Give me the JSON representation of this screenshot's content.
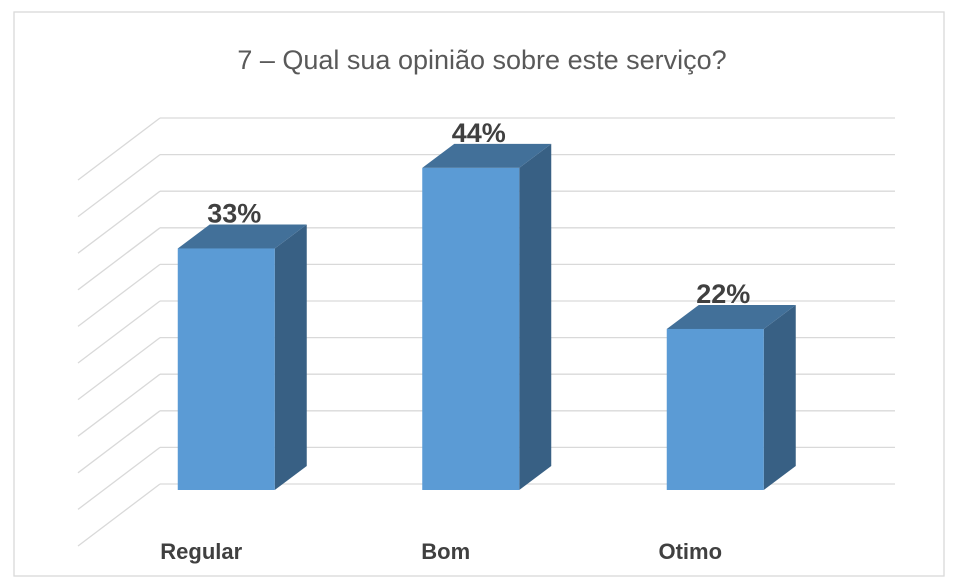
{
  "chart_data": {
    "type": "bar3d",
    "title": "7 – Qual sua opinião sobre este serviço?",
    "categories": [
      "Regular",
      "Bom",
      "Otimo"
    ],
    "values": [
      33,
      44,
      22
    ],
    "value_labels": [
      "33%",
      "44%",
      "22%"
    ],
    "color": "#5b9bd5",
    "ylim": [
      0,
      50
    ],
    "yticks": [
      0,
      5,
      10,
      15,
      20,
      25,
      30,
      35,
      40,
      45,
      50
    ],
    "grid": true
  }
}
